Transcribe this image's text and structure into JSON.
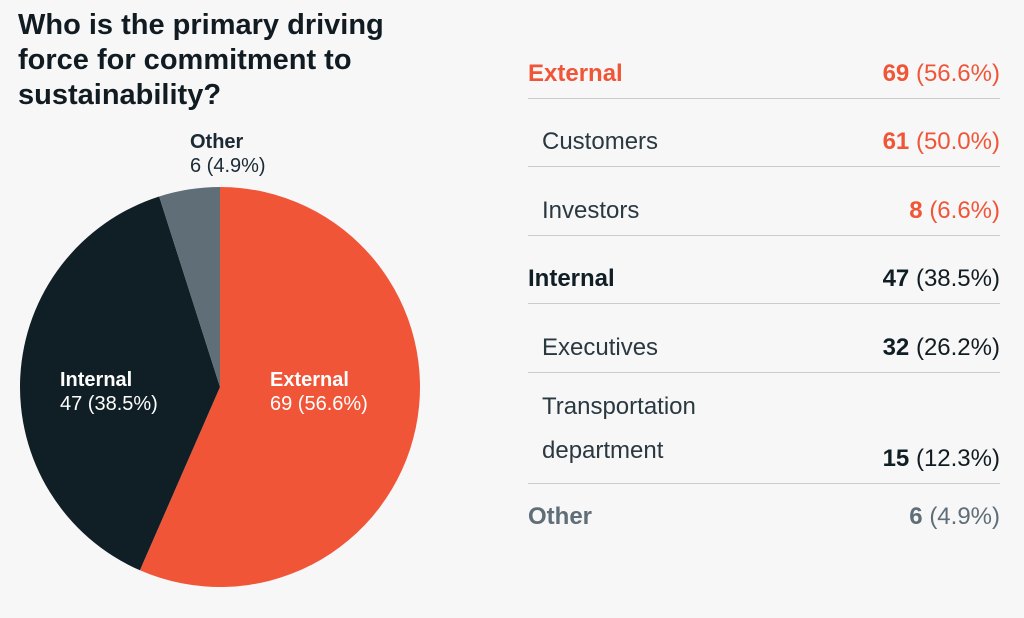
{
  "colors": {
    "external": "#f05538",
    "internal": "#101e25",
    "other": "#5f6e77",
    "text_dark": "#111c22",
    "text_other": "#5f6e77"
  },
  "chart_data": {
    "type": "pie",
    "title": "Who is the primary driving force for commitment to sustainability?",
    "slices": [
      {
        "name": "External",
        "value": 69,
        "percent": "56.6%",
        "display": "69 (56.6%)"
      },
      {
        "name": "Internal",
        "value": 47,
        "percent": "38.5%",
        "display": "47 (38.5%)"
      },
      {
        "name": "Other",
        "value": 6,
        "percent": "4.9%",
        "display": "6 (4.9%)"
      }
    ]
  },
  "breakdown": {
    "rows": [
      {
        "label": "External",
        "count": "69",
        "pct": "(56.6%)",
        "level": "group",
        "color_key": "external"
      },
      {
        "label": "Customers",
        "count": "61",
        "pct": "(50.0%)",
        "level": "sub",
        "color_key": "external"
      },
      {
        "label": "Investors",
        "count": "8",
        "pct": "(6.6%)",
        "level": "sub",
        "color_key": "external"
      },
      {
        "label": "Internal",
        "count": "47",
        "pct": "(38.5%)",
        "level": "group",
        "color_key": "internal"
      },
      {
        "label": "Executives",
        "count": "32",
        "pct": "(26.2%)",
        "level": "sub",
        "color_key": "internal"
      },
      {
        "label": "Transportation department",
        "count": "15",
        "pct": "(12.3%)",
        "level": "sub",
        "color_key": "internal"
      },
      {
        "label": "Other",
        "count": "6",
        "pct": "(4.9%)",
        "level": "group",
        "color_key": "other"
      }
    ]
  }
}
